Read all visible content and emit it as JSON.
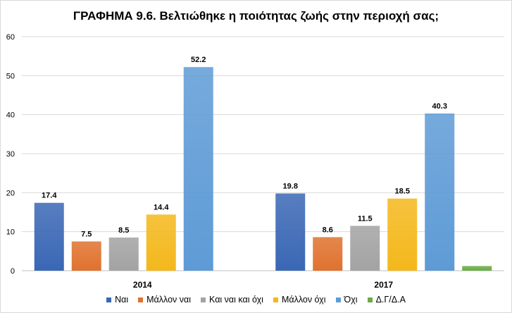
{
  "chart_data": {
    "type": "bar",
    "title": "ΓΡΑΦΗΜΑ 9.6. Βελτιώθηκε η ποιότητας ζωής στην περιοχή σας;",
    "categories": [
      "2014",
      "2017"
    ],
    "series": [
      {
        "name": "Ναι",
        "values": [
          17.4,
          19.8
        ],
        "color": "#3a67b5",
        "labels": [
          "17.4",
          "19.8"
        ]
      },
      {
        "name": "Μάλλον ναι",
        "values": [
          7.5,
          8.6
        ],
        "color": "#e0722e",
        "labels": [
          "7.5",
          "8.6"
        ]
      },
      {
        "name": "Και ναι και όχι",
        "values": [
          8.5,
          11.5
        ],
        "color": "#a3a3a3",
        "labels": [
          "8.5",
          "11.5"
        ]
      },
      {
        "name": "Μάλλον όχι",
        "values": [
          14.4,
          18.5
        ],
        "color": "#f4b81c",
        "labels": [
          "14.4",
          "18.5"
        ]
      },
      {
        "name": "Όχι",
        "values": [
          52.2,
          40.3
        ],
        "color": "#5e9bd6",
        "labels": [
          "52.2",
          "40.3"
        ]
      },
      {
        "name": "Δ.Γ/Δ.Α",
        "values": [
          0,
          1.2
        ],
        "color": "#6aab46",
        "labels": [
          "",
          ""
        ]
      }
    ],
    "yticks": [
      "0",
      "10",
      "20",
      "30",
      "40",
      "50",
      "60"
    ],
    "ylim": [
      0,
      60
    ],
    "grid": true,
    "legend_position": "bottom"
  }
}
